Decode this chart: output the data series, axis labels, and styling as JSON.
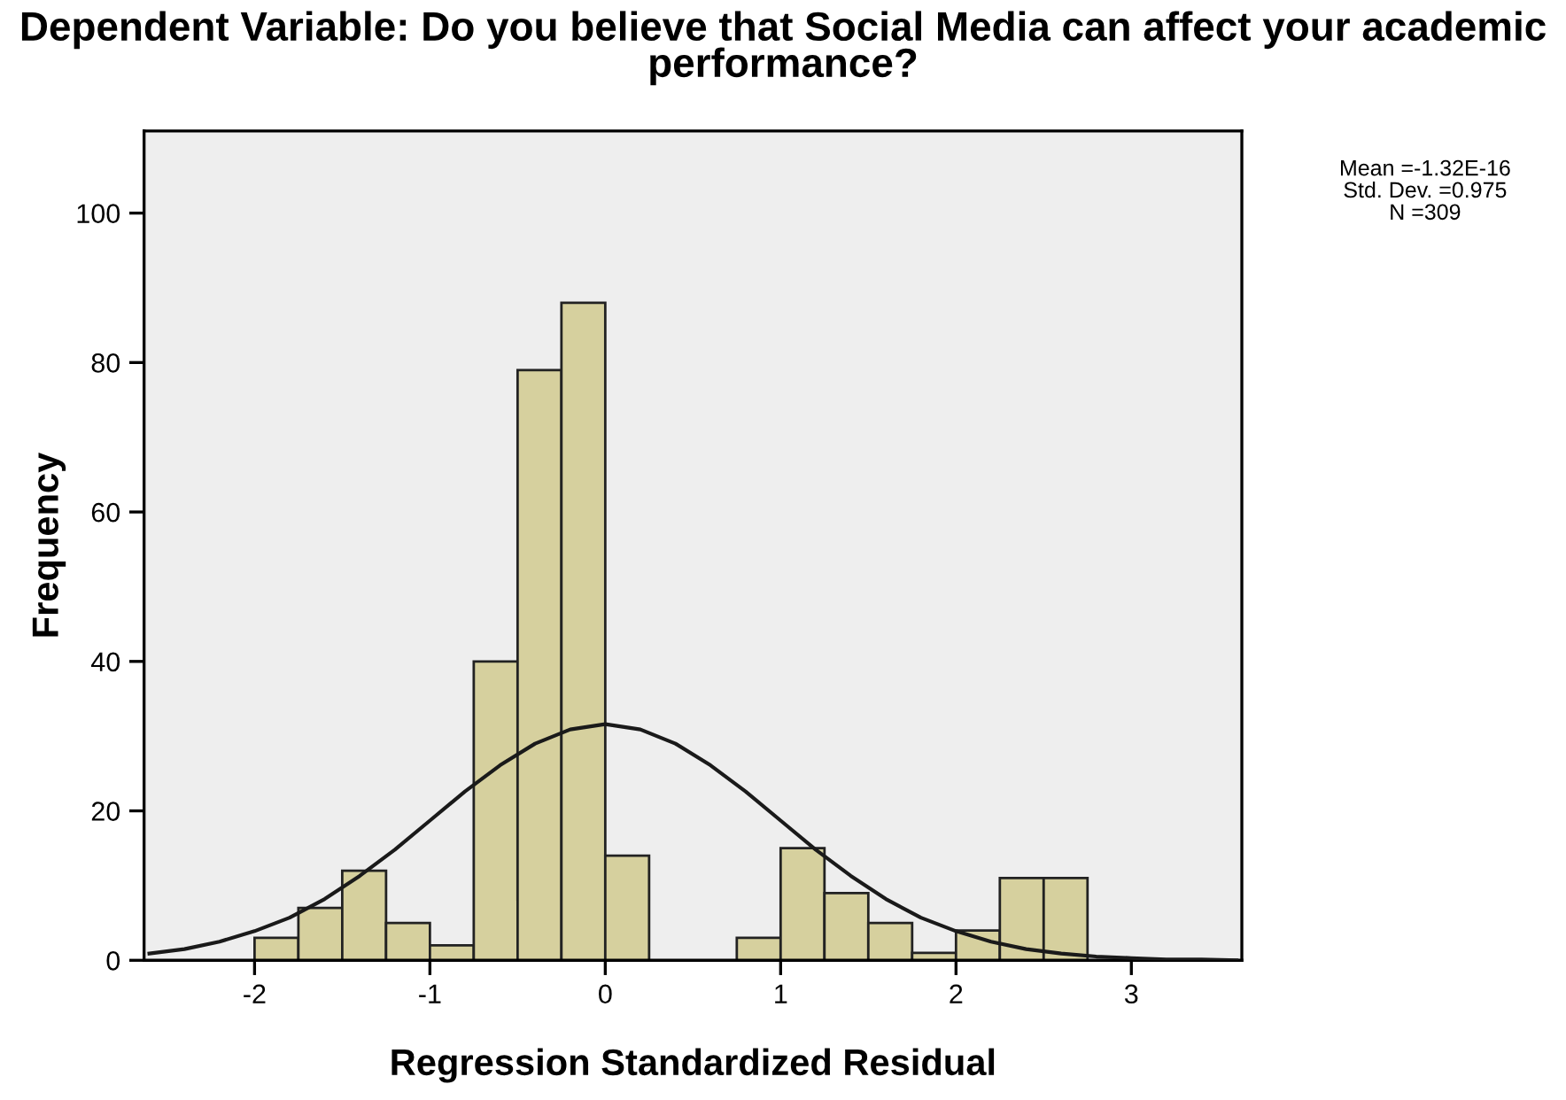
{
  "chart_data": {
    "type": "histogram",
    "title": "Dependent Variable: Do you believe that Social Media can affect your academic performance?",
    "xlabel": "Regression Standardized Residual",
    "ylabel": "Frequency",
    "bins": [
      -2,
      -1.75,
      -1.5,
      -1.25,
      -1,
      -0.75,
      -0.5,
      -0.25,
      0,
      0.25,
      0.5,
      0.75,
      1,
      1.25,
      1.5,
      1.75,
      2,
      2.25,
      2.5,
      2.75
    ],
    "values": [
      3,
      7,
      12,
      5,
      2,
      40,
      79,
      88,
      14,
      0,
      0,
      3,
      15,
      9,
      5,
      1,
      4,
      11,
      11
    ],
    "color": "#d6d09e",
    "series": [
      {
        "type": "line",
        "color": "#1a1a1a",
        "x": [
          -2.6,
          -2.4,
          -2.2,
          -2.0,
          -1.8,
          -1.6,
          -1.4,
          -1.2,
          -1.0,
          -0.8,
          -0.6,
          -0.4,
          -0.2,
          0,
          0.2,
          0.4,
          0.6,
          0.8,
          1.0,
          1.2,
          1.4,
          1.6,
          1.8,
          2.0,
          2.2,
          2.4,
          2.6,
          2.8,
          3.0,
          3.2,
          3.4,
          3.6
        ],
        "values": [
          0.9,
          1.5,
          2.5,
          3.9,
          5.7,
          8.2,
          11.3,
          14.8,
          18.7,
          22.6,
          26.1,
          29.0,
          30.9,
          31.6,
          30.9,
          29.0,
          26.1,
          22.6,
          18.7,
          14.8,
          11.3,
          8.2,
          5.7,
          3.9,
          2.5,
          1.5,
          0.9,
          0.5,
          0.3,
          0.1,
          0.1,
          0.0
        ]
      }
    ],
    "xlim": [
      -2.63,
      3.63
    ],
    "xticks": [
      -2,
      -1,
      0,
      1,
      2,
      3
    ],
    "ylim": [
      0,
      111
    ],
    "yticks": [
      0,
      20,
      40,
      60,
      80,
      100
    ],
    "grid": false,
    "legend": false,
    "annotations": [
      "Mean =-1.32E-16",
      "Std. Dev. =0.975",
      "N =309"
    ]
  }
}
